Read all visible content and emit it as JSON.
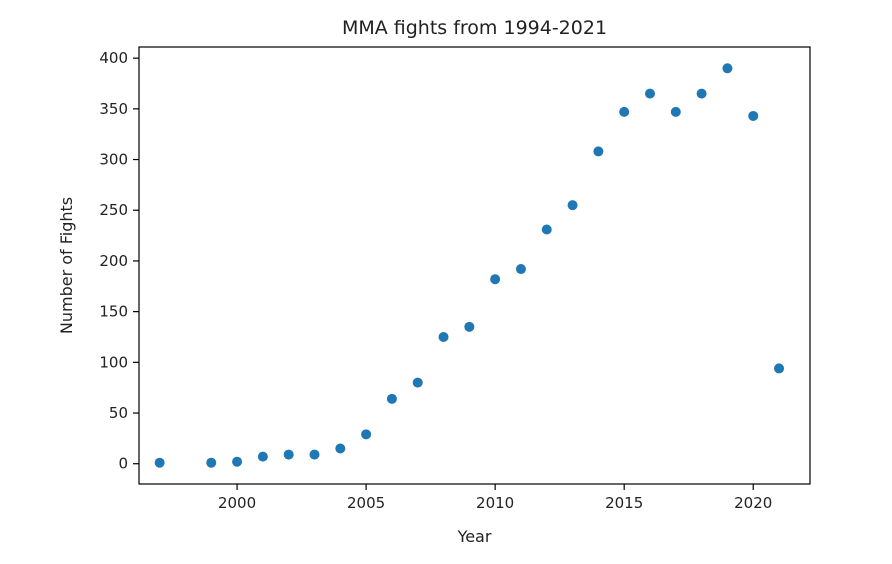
{
  "chart_data": {
    "type": "scatter",
    "title": "MMA fights from 1994-2021",
    "xlabel": "Year",
    "ylabel": "Number of Fights",
    "xlim": [
      1996.2,
      2022.2
    ],
    "ylim": [
      -20,
      411
    ],
    "x_ticks": [
      2000,
      2005,
      2010,
      2015,
      2020
    ],
    "y_ticks": [
      0,
      50,
      100,
      150,
      200,
      250,
      300,
      350,
      400
    ],
    "grid": false,
    "legend": "none",
    "marker_color": "#1f77b4",
    "points": [
      {
        "x": 1997,
        "y": 1
      },
      {
        "x": 1999,
        "y": 1
      },
      {
        "x": 2000,
        "y": 2
      },
      {
        "x": 2001,
        "y": 7
      },
      {
        "x": 2002,
        "y": 9
      },
      {
        "x": 2003,
        "y": 9
      },
      {
        "x": 2004,
        "y": 15
      },
      {
        "x": 2005,
        "y": 29
      },
      {
        "x": 2006,
        "y": 64
      },
      {
        "x": 2007,
        "y": 80
      },
      {
        "x": 2008,
        "y": 125
      },
      {
        "x": 2009,
        "y": 135
      },
      {
        "x": 2010,
        "y": 182
      },
      {
        "x": 2011,
        "y": 192
      },
      {
        "x": 2012,
        "y": 231
      },
      {
        "x": 2013,
        "y": 255
      },
      {
        "x": 2014,
        "y": 308
      },
      {
        "x": 2015,
        "y": 347
      },
      {
        "x": 2016,
        "y": 365
      },
      {
        "x": 2017,
        "y": 347
      },
      {
        "x": 2018,
        "y": 365
      },
      {
        "x": 2019,
        "y": 390
      },
      {
        "x": 2020,
        "y": 343
      },
      {
        "x": 2021,
        "y": 94
      }
    ]
  }
}
